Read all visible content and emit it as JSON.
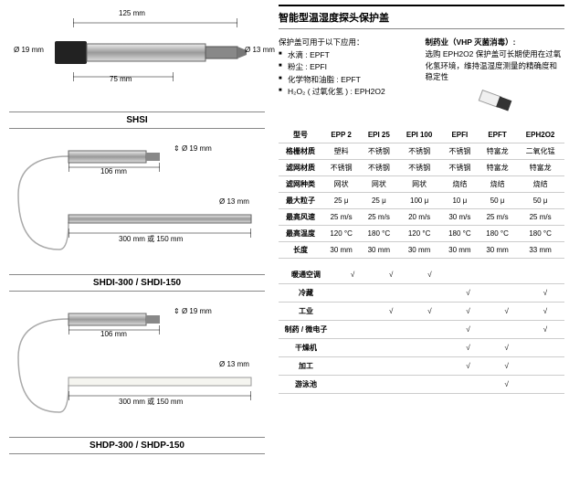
{
  "left": {
    "d1": {
      "top": "125 mm",
      "left": "Ø 19 mm",
      "right": "Ø 13 mm",
      "bottom": "75 mm",
      "title": "SHSI"
    },
    "d2": {
      "top": "Ø 19 mm",
      "right": "Ø 13 mm",
      "mid": "106 mm",
      "bottom": "300 mm  或  150 mm",
      "title": "SHDI-300 / SHDI-150"
    },
    "d3": {
      "top": "Ø 19 mm",
      "right": "Ø 13 mm",
      "mid": "106 mm",
      "bottom": "300 mm  或  150 mm",
      "title": "SHDP-300 / SHDP-150"
    }
  },
  "right": {
    "title": "智能型温湿度探头保护盖",
    "introTitle": "保护盖可用于以下应用：",
    "bullets": [
      "水滴 : EPFT",
      "粉尘 : EPFI",
      "化学物和油脂 : EPFT",
      "H₂O₂ ( 过氧化氢 ) : EPH2O2"
    ],
    "pharmaTitle": "制药业（VHP 灭菌消毒）:",
    "pharmaText": "选购 EPH2O2 保护盖可长期使用在过氧化氢环境，维持温湿度测量的精确度和稳定性",
    "specHeaders": [
      "型号",
      "EPP 2",
      "EPI 25",
      "EPI 100",
      "EPFI",
      "EPFT",
      "EPH2O2"
    ],
    "specRows": [
      [
        "格栅材质",
        "塑料",
        "不锈钢",
        "不锈钢",
        "不锈钢",
        "特富龙",
        "二氧化锰"
      ],
      [
        "滤网材质",
        "不锈钢",
        "不锈钢",
        "不锈钢",
        "不锈钢",
        "特富龙",
        "特富龙"
      ],
      [
        "滤网种类",
        "网状",
        "网状",
        "网状",
        "烧结",
        "烧结",
        "烧结"
      ],
      [
        "最大粒子",
        "25 μ",
        "25 μ",
        "100 μ",
        "10 μ",
        "50 μ",
        "50 μ"
      ],
      [
        "最高风速",
        "25 m/s",
        "25 m/s",
        "20 m/s",
        "30 m/s",
        "25 m/s",
        "25 m/s"
      ],
      [
        "最高温度",
        "120 °C",
        "180 °C",
        "120 °C",
        "180 °C",
        "180 °C",
        "180 °C"
      ],
      [
        "长度",
        "30 mm",
        "30 mm",
        "30 mm",
        "30 mm",
        "30 mm",
        "33 mm"
      ]
    ],
    "appRows": [
      [
        "暖通空调",
        "√",
        "√",
        "√",
        "",
        "",
        ""
      ],
      [
        "冷藏",
        "",
        "",
        "",
        "√",
        "",
        "√"
      ],
      [
        "工业",
        "",
        "√",
        "√",
        "√",
        "√",
        "√"
      ],
      [
        "制药 / 微电子",
        "",
        "",
        "",
        "√",
        "",
        "√"
      ],
      [
        "干燥机",
        "",
        "",
        "",
        "√",
        "√",
        ""
      ],
      [
        "加工",
        "",
        "",
        "",
        "√",
        "√",
        ""
      ],
      [
        "游泳池",
        "",
        "",
        "",
        "",
        "√",
        ""
      ]
    ]
  }
}
